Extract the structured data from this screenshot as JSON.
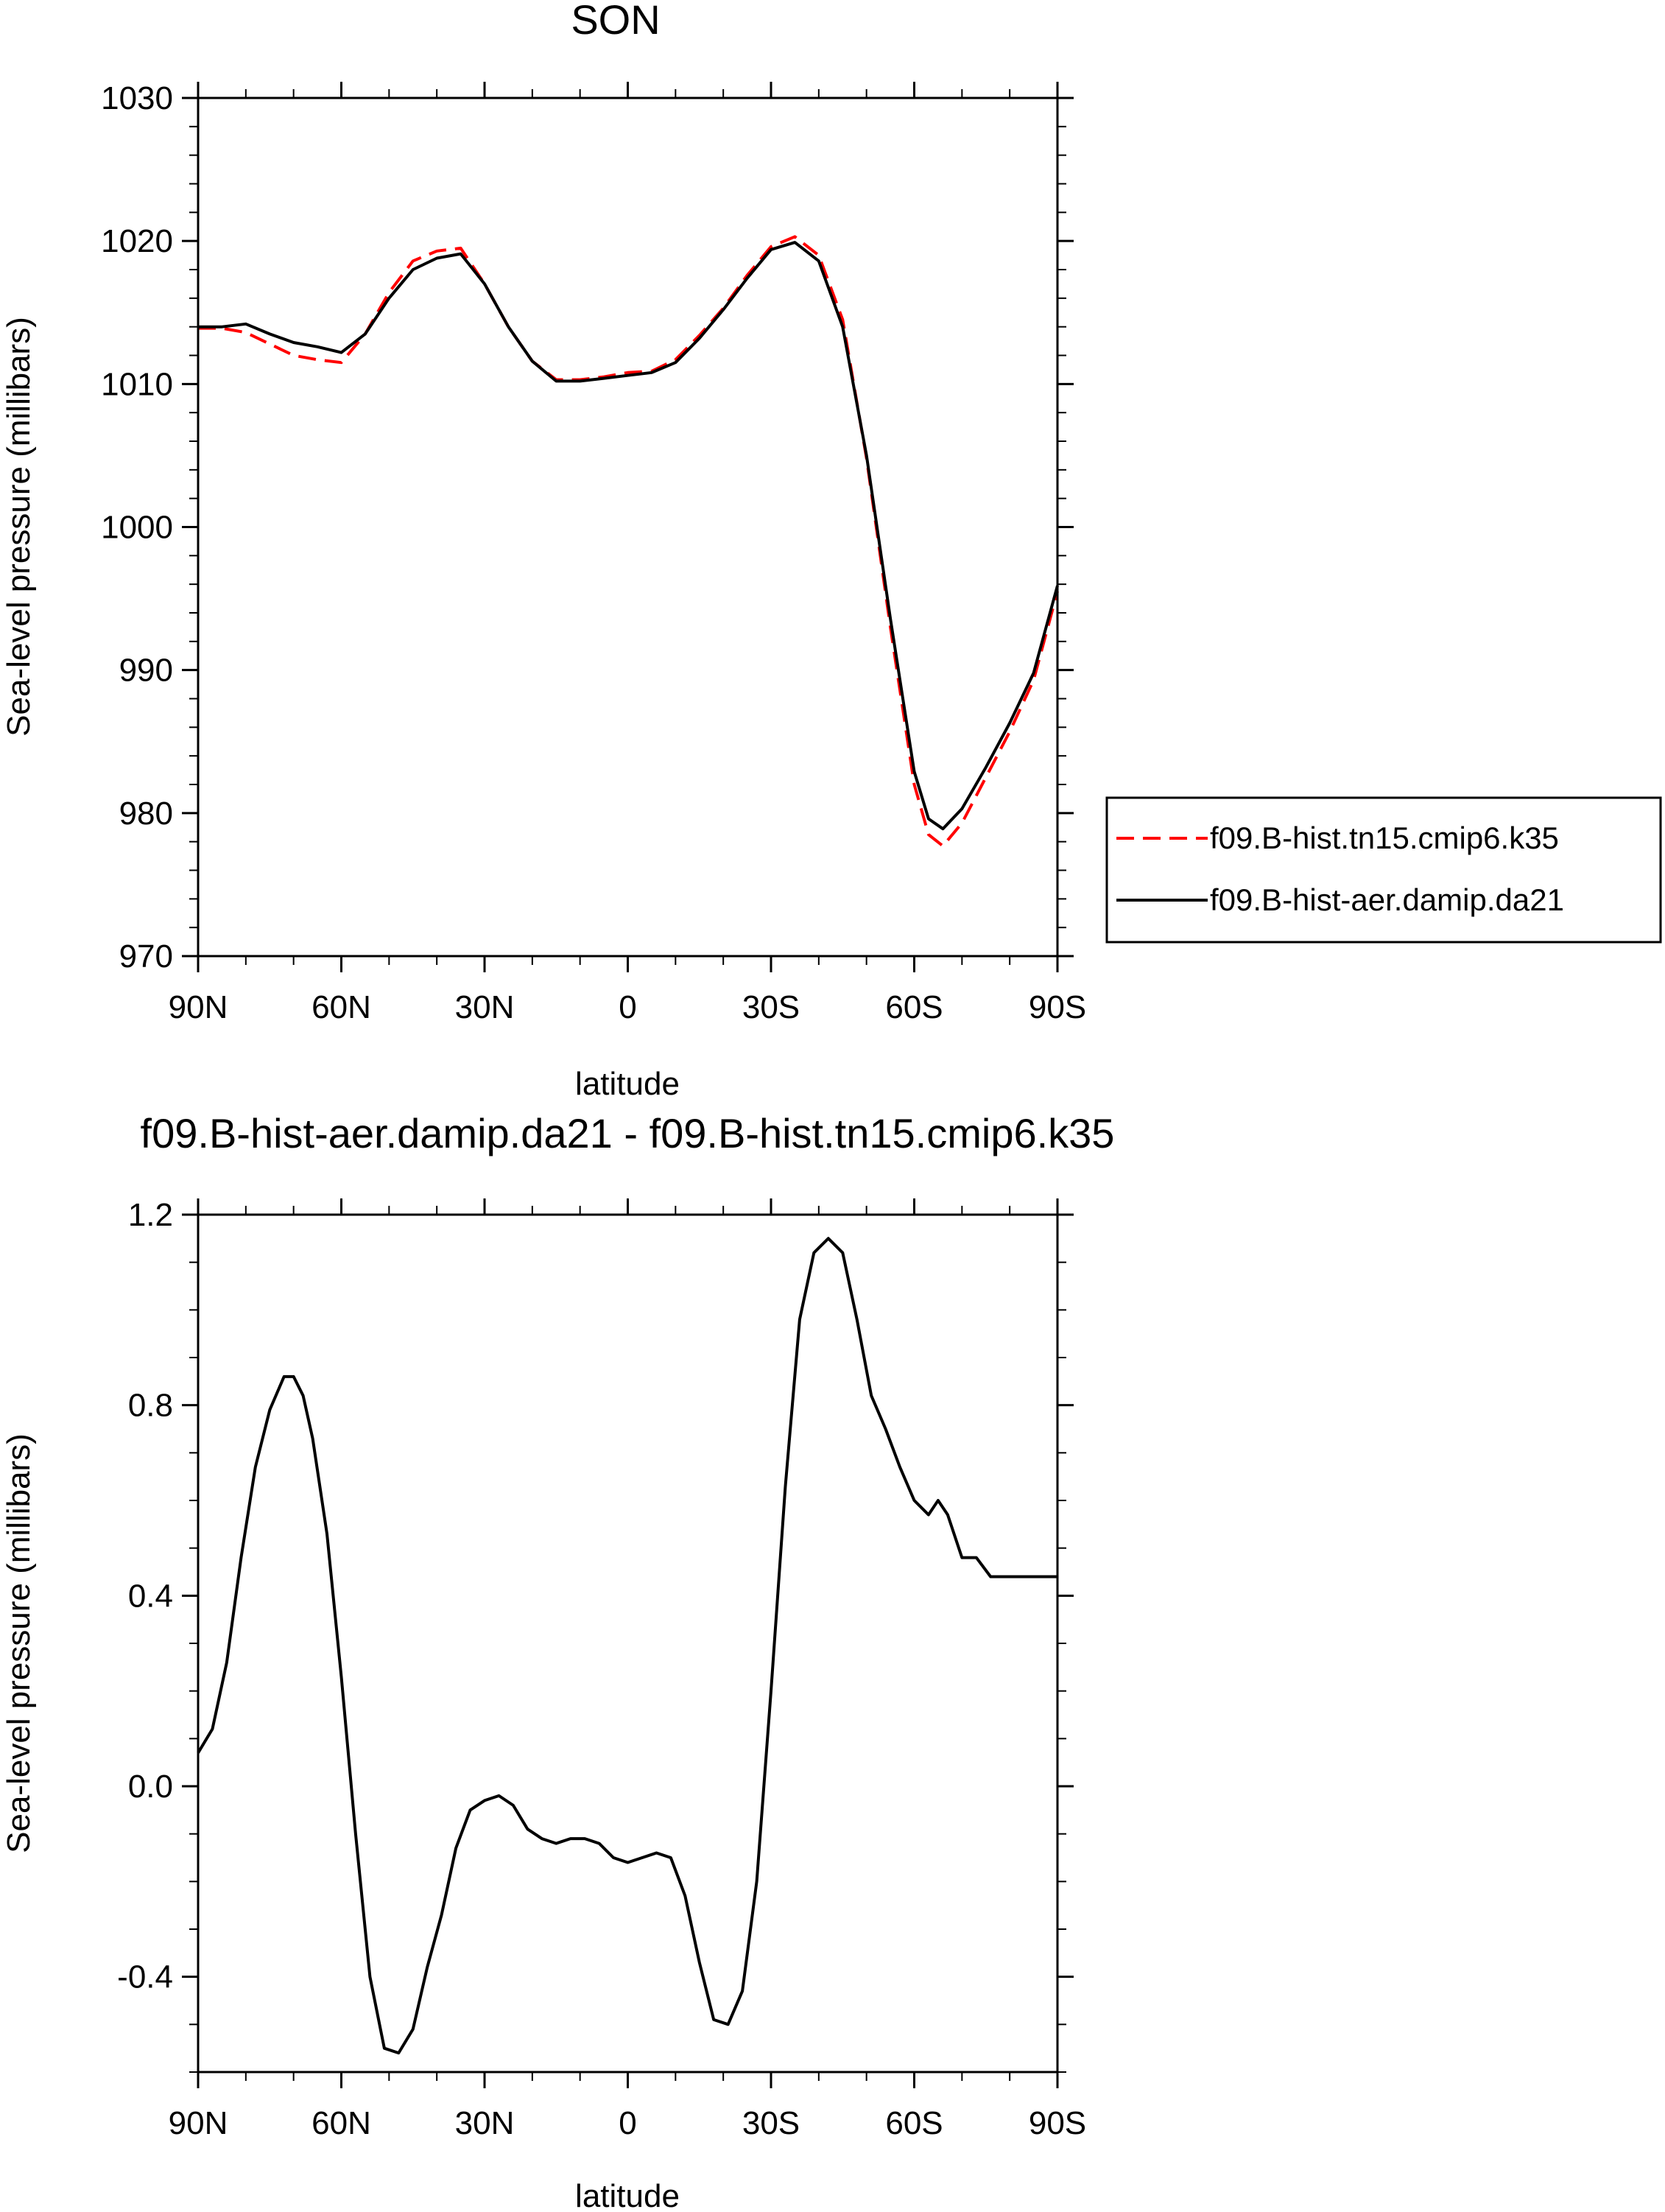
{
  "chart_data": [
    {
      "type": "line",
      "title": "SON",
      "xlabel": "latitude",
      "ylabel": "Sea-level pressure (millibars)",
      "xlim": [
        90,
        -90
      ],
      "ylim": [
        970,
        1030
      ],
      "xticks": [
        90,
        60,
        30,
        0,
        -30,
        -60,
        -90
      ],
      "xtick_labels": [
        "90N",
        "60N",
        "30N",
        "0",
        "30S",
        "60S",
        "90S"
      ],
      "yticks": [
        970,
        980,
        990,
        1000,
        1010,
        1020,
        1030
      ],
      "ytick_labels": [
        "970",
        "980",
        "990",
        "1000",
        "1010",
        "1020",
        "1030"
      ],
      "grid": false,
      "legend_position": "right",
      "series": [
        {
          "name": "f09.B-hist.tn15.cmip6.k35",
          "color": "#ff0000",
          "style": "dashed",
          "x": [
            90,
            85,
            80,
            75,
            70,
            65,
            60,
            55,
            50,
            45,
            40,
            35,
            30,
            25,
            20,
            15,
            10,
            5,
            0,
            -5,
            -10,
            -15,
            -20,
            -25,
            -30,
            -35,
            -40,
            -45,
            -50,
            -55,
            -60,
            -63,
            -66,
            -70,
            -75,
            -80,
            -85,
            -90
          ],
          "y": [
            1013.9,
            1013.9,
            1013.6,
            1012.8,
            1012.0,
            1011.7,
            1011.5,
            1013.5,
            1016.4,
            1018.6,
            1019.3,
            1019.5,
            1017.0,
            1014.0,
            1011.6,
            1010.3,
            1010.3,
            1010.5,
            1010.8,
            1010.9,
            1011.7,
            1013.4,
            1015.3,
            1017.6,
            1019.6,
            1020.3,
            1019.0,
            1014.5,
            1004.8,
            993.0,
            982.0,
            978.5,
            977.7,
            979.3,
            982.5,
            985.7,
            989.3,
            995.5
          ]
        },
        {
          "name": "f09.B-hist-aer.damip.da21",
          "color": "#000000",
          "style": "solid",
          "x": [
            90,
            85,
            80,
            75,
            70,
            65,
            60,
            55,
            50,
            45,
            40,
            35,
            30,
            25,
            20,
            15,
            10,
            5,
            0,
            -5,
            -10,
            -15,
            -20,
            -25,
            -30,
            -35,
            -40,
            -45,
            -50,
            -55,
            -60,
            -63,
            -66,
            -70,
            -75,
            -80,
            -85,
            -90
          ],
          "y": [
            1014.0,
            1014.0,
            1014.2,
            1013.5,
            1012.9,
            1012.6,
            1012.2,
            1013.5,
            1016.0,
            1018.0,
            1018.8,
            1019.1,
            1017.0,
            1014.0,
            1011.6,
            1010.2,
            1010.2,
            1010.4,
            1010.6,
            1010.8,
            1011.5,
            1013.2,
            1015.2,
            1017.4,
            1019.4,
            1019.9,
            1018.6,
            1014.0,
            1005.0,
            993.6,
            982.9,
            979.6,
            978.9,
            980.3,
            983.2,
            986.3,
            989.8,
            995.9
          ]
        }
      ]
    },
    {
      "type": "line",
      "title": "f09.B-hist-aer.damip.da21 - f09.B-hist.tn15.cmip6.k35",
      "xlabel": "latitude",
      "ylabel": "Sea-level pressure (millibars)",
      "xlim": [
        90,
        -90
      ],
      "ylim": [
        -0.6,
        1.2
      ],
      "xticks": [
        90,
        60,
        30,
        0,
        -30,
        -60,
        -90
      ],
      "xtick_labels": [
        "90N",
        "60N",
        "30N",
        "0",
        "30S",
        "60S",
        "90S"
      ],
      "yticks": [
        -0.4,
        0.0,
        0.4,
        0.8,
        1.2
      ],
      "ytick_labels": [
        "-0.4",
        "0.0",
        "0.4",
        "0.8",
        "1.2"
      ],
      "grid": false,
      "series": [
        {
          "color": "#000000",
          "style": "solid",
          "x": [
            90,
            87,
            84,
            81,
            78,
            75,
            72,
            70,
            68,
            66,
            63,
            60,
            57,
            54,
            51,
            48,
            45,
            42,
            39,
            36,
            33,
            30,
            27,
            24,
            21,
            18,
            15,
            12,
            9,
            6,
            3,
            0,
            -3,
            -6,
            -9,
            -12,
            -15,
            -18,
            -21,
            -24,
            -27,
            -30,
            -33,
            -36,
            -39,
            -42,
            -45,
            -48,
            -51,
            -54,
            -57,
            -60,
            -63,
            -65,
            -67,
            -70,
            -73,
            -76,
            -79,
            -82,
            -84,
            -85,
            -86,
            -87,
            -88,
            -89,
            -90
          ],
          "y": [
            0.07,
            0.12,
            0.26,
            0.48,
            0.67,
            0.79,
            0.86,
            0.86,
            0.82,
            0.73,
            0.53,
            0.23,
            -0.1,
            -0.4,
            -0.55,
            -0.56,
            -0.51,
            -0.38,
            -0.27,
            -0.13,
            -0.05,
            -0.03,
            -0.02,
            -0.04,
            -0.09,
            -0.11,
            -0.12,
            -0.11,
            -0.11,
            -0.12,
            -0.15,
            -0.16,
            -0.15,
            -0.14,
            -0.15,
            -0.23,
            -0.37,
            -0.49,
            -0.5,
            -0.43,
            -0.2,
            0.2,
            0.63,
            0.98,
            1.12,
            1.15,
            1.12,
            0.98,
            0.82,
            0.75,
            0.67,
            0.6,
            0.57,
            0.6,
            0.57,
            0.48,
            0.48,
            0.44,
            0.44,
            0.44,
            0.44,
            0.44,
            0.44,
            0.44,
            0.44,
            0.44,
            0.44
          ]
        }
      ]
    }
  ]
}
